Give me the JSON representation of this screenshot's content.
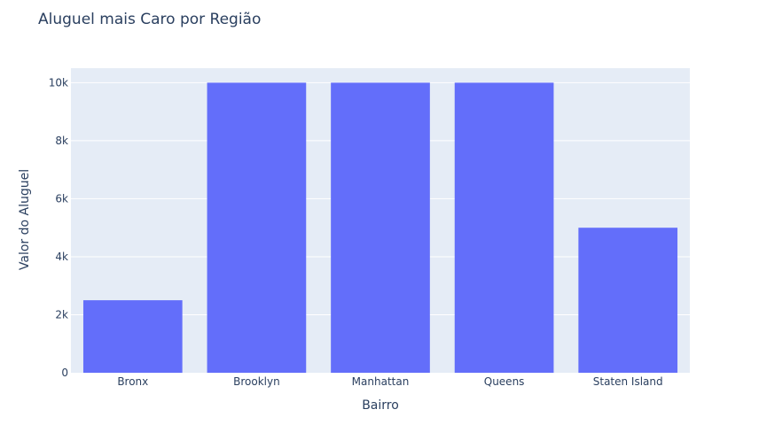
{
  "chart_data": {
    "type": "bar",
    "title": "Aluguel mais Caro por Região",
    "xlabel": "Bairro",
    "ylabel": "Valor do Aluguel",
    "categories": [
      "Bronx",
      "Brooklyn",
      "Manhattan",
      "Queens",
      "Staten Island"
    ],
    "values": [
      2500,
      10000,
      10000,
      10000,
      5000
    ],
    "ylim": [
      0,
      10500
    ],
    "yticks": [
      0,
      2000,
      4000,
      6000,
      8000,
      10000
    ],
    "ytick_labels": [
      "0",
      "2k",
      "4k",
      "6k",
      "8k",
      "10k"
    ],
    "grid": true,
    "colors": {
      "bar": "#636efa",
      "plot_bg": "#e5ecf6",
      "grid": "#ffffff",
      "text": "#2a3f5f"
    }
  }
}
